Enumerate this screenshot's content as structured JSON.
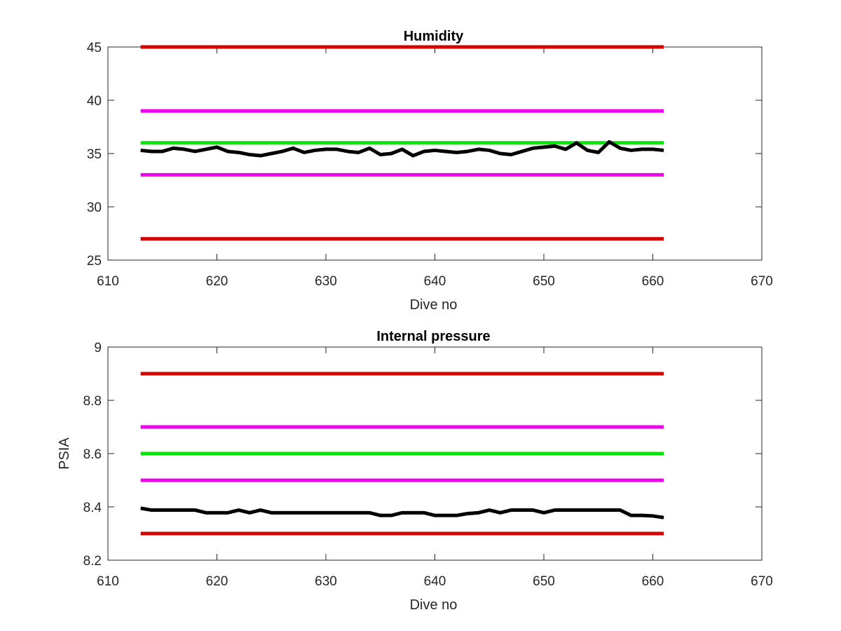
{
  "chart_data": [
    {
      "type": "line",
      "title": "Humidity",
      "xlabel": "Dive no",
      "ylabel": "",
      "xlim": [
        610,
        670
      ],
      "ylim": [
        25,
        45
      ],
      "xticks": [
        610,
        620,
        630,
        640,
        650,
        660,
        670
      ],
      "yticks": [
        25,
        30,
        35,
        40,
        45
      ],
      "grid": false,
      "box": true,
      "series": [
        {
          "color": "#d40000",
          "x": [
            613,
            661
          ],
          "y": [
            45,
            45
          ]
        },
        {
          "color": "#ee00ee",
          "x": [
            613,
            661
          ],
          "y": [
            39,
            39
          ]
        },
        {
          "color": "#00e600",
          "x": [
            613,
            661
          ],
          "y": [
            36,
            36
          ]
        },
        {
          "color": "#ee00ee",
          "x": [
            613,
            661
          ],
          "y": [
            33,
            33
          ]
        },
        {
          "color": "#d40000",
          "x": [
            613,
            661
          ],
          "y": [
            27,
            27
          ]
        },
        {
          "color": "#000000",
          "x": [
            613,
            614,
            615,
            616,
            617,
            618,
            619,
            620,
            621,
            622,
            623,
            624,
            625,
            626,
            627,
            628,
            629,
            630,
            631,
            632,
            633,
            634,
            635,
            636,
            637,
            638,
            639,
            640,
            641,
            642,
            643,
            644,
            645,
            646,
            647,
            648,
            649,
            650,
            651,
            652,
            653,
            654,
            655,
            656,
            657,
            658,
            659,
            660,
            661
          ],
          "y": [
            35.3,
            35.2,
            35.2,
            35.5,
            35.4,
            35.2,
            35.4,
            35.6,
            35.2,
            35.1,
            34.9,
            34.8,
            35.0,
            35.2,
            35.5,
            35.1,
            35.3,
            35.4,
            35.4,
            35.2,
            35.1,
            35.5,
            34.9,
            35.0,
            35.4,
            34.8,
            35.2,
            35.3,
            35.2,
            35.1,
            35.2,
            35.4,
            35.3,
            35.0,
            34.9,
            35.2,
            35.5,
            35.6,
            35.7,
            35.4,
            36.0,
            35.3,
            35.1,
            36.1,
            35.5,
            35.3,
            35.4,
            35.4,
            35.3
          ]
        }
      ]
    },
    {
      "type": "line",
      "title": "Internal pressure",
      "xlabel": "Dive no",
      "ylabel": "PSIA",
      "xlim": [
        610,
        670
      ],
      "ylim": [
        8.2,
        9
      ],
      "xticks": [
        610,
        620,
        630,
        640,
        650,
        660,
        670
      ],
      "yticks": [
        8.2,
        8.4,
        8.6,
        8.8,
        9
      ],
      "ytick_labels": [
        "8.2",
        "8.4",
        "8.6",
        "8.8",
        "9"
      ],
      "grid": false,
      "box": true,
      "series": [
        {
          "color": "#d40000",
          "x": [
            613,
            661
          ],
          "y": [
            8.9,
            8.9
          ]
        },
        {
          "color": "#ee00ee",
          "x": [
            613,
            661
          ],
          "y": [
            8.7,
            8.7
          ]
        },
        {
          "color": "#00e600",
          "x": [
            613,
            661
          ],
          "y": [
            8.6,
            8.6
          ]
        },
        {
          "color": "#ee00ee",
          "x": [
            613,
            661
          ],
          "y": [
            8.5,
            8.5
          ]
        },
        {
          "color": "#d40000",
          "x": [
            613,
            661
          ],
          "y": [
            8.3,
            8.3
          ]
        },
        {
          "color": "#000000",
          "x": [
            613,
            614,
            615,
            616,
            617,
            618,
            619,
            620,
            621,
            622,
            623,
            624,
            625,
            626,
            627,
            628,
            629,
            630,
            631,
            632,
            633,
            634,
            635,
            636,
            637,
            638,
            639,
            640,
            641,
            642,
            643,
            644,
            645,
            646,
            647,
            648,
            649,
            650,
            651,
            652,
            653,
            654,
            655,
            656,
            657,
            658,
            659,
            660,
            661
          ],
          "y": [
            8.395,
            8.388,
            8.388,
            8.388,
            8.388,
            8.388,
            8.378,
            8.378,
            8.378,
            8.388,
            8.378,
            8.388,
            8.378,
            8.378,
            8.378,
            8.378,
            8.378,
            8.378,
            8.378,
            8.378,
            8.378,
            8.378,
            8.368,
            8.368,
            8.378,
            8.378,
            8.378,
            8.368,
            8.368,
            8.368,
            8.375,
            8.378,
            8.388,
            8.378,
            8.388,
            8.388,
            8.388,
            8.378,
            8.388,
            8.388,
            8.388,
            8.388,
            8.388,
            8.388,
            8.388,
            8.368,
            8.368,
            8.366,
            8.36
          ]
        }
      ]
    }
  ]
}
